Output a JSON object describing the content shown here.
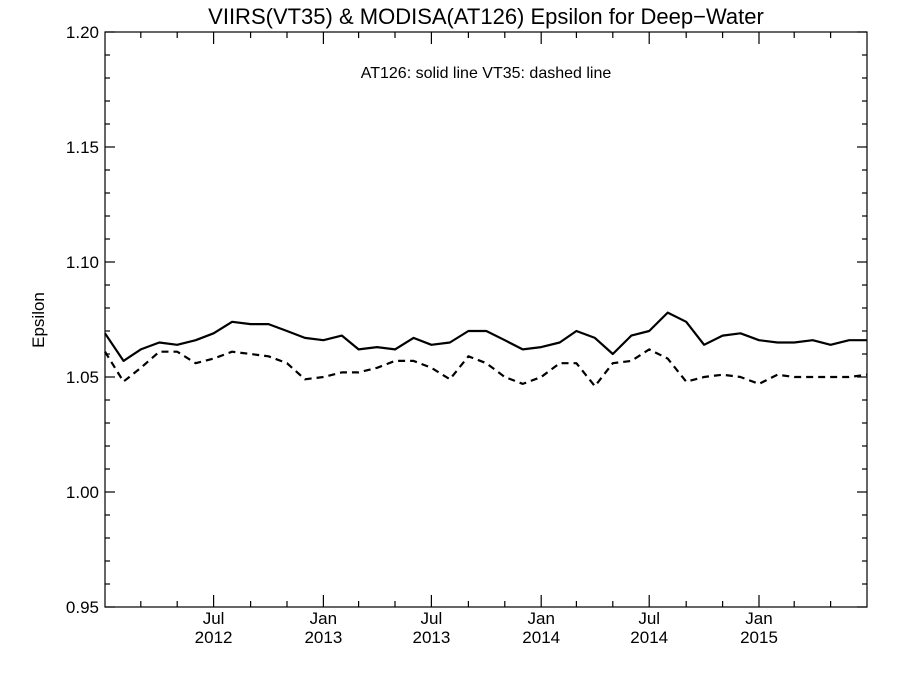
{
  "chart_data": {
    "type": "line",
    "title": "VIIRS(VT35) & MODISA(AT126)  Epsilon for Deep−Water",
    "annotation": "AT126: solid line   VT35: dashed line",
    "ylabel": "Epsilon",
    "xlabel": "",
    "ylim": [
      0.95,
      1.2
    ],
    "xlim": [
      "2012-01-01",
      "2015-07-01"
    ],
    "y_ticks": [
      "0.95",
      "1.00",
      "1.05",
      "1.10",
      "1.15",
      "1.20"
    ],
    "y_tick_values": [
      0.95,
      1.0,
      1.05,
      1.1,
      1.15,
      1.2
    ],
    "x_ticks": [
      {
        "date": "2012-07-01",
        "month": "Jul",
        "year": "2012"
      },
      {
        "date": "2013-01-01",
        "month": "Jan",
        "year": "2013"
      },
      {
        "date": "2013-07-01",
        "month": "Jul",
        "year": "2013"
      },
      {
        "date": "2014-01-01",
        "month": "Jan",
        "year": "2014"
      },
      {
        "date": "2014-07-01",
        "month": "Jul",
        "year": "2014"
      },
      {
        "date": "2015-01-01",
        "month": "Jan",
        "year": "2015"
      }
    ],
    "x_minor_ticks": [
      "2012-03-01",
      "2012-05-01",
      "2012-09-01",
      "2012-11-01",
      "2013-03-01",
      "2013-05-01",
      "2013-09-01",
      "2013-11-01",
      "2014-03-01",
      "2014-05-01",
      "2014-09-01",
      "2014-11-01",
      "2015-03-01",
      "2015-05-01"
    ],
    "x": [
      "2012-01-01",
      "2012-02-01",
      "2012-03-01",
      "2012-04-01",
      "2012-05-01",
      "2012-06-01",
      "2012-07-01",
      "2012-08-01",
      "2012-09-01",
      "2012-10-01",
      "2012-11-01",
      "2012-12-01",
      "2013-01-01",
      "2013-02-01",
      "2013-03-01",
      "2013-04-01",
      "2013-05-01",
      "2013-06-01",
      "2013-07-01",
      "2013-08-01",
      "2013-09-01",
      "2013-10-01",
      "2013-11-01",
      "2013-12-01",
      "2014-01-01",
      "2014-02-01",
      "2014-03-01",
      "2014-04-01",
      "2014-05-01",
      "2014-06-01",
      "2014-07-01",
      "2014-08-01",
      "2014-09-01",
      "2014-10-01",
      "2014-11-01",
      "2014-12-01",
      "2015-01-01",
      "2015-02-01",
      "2015-03-01",
      "2015-04-01",
      "2015-05-01",
      "2015-06-01",
      "2015-07-01"
    ],
    "series": [
      {
        "style": "solid",
        "values": [
          1.069,
          1.057,
          1.062,
          1.065,
          1.064,
          1.066,
          1.069,
          1.074,
          1.073,
          1.073,
          1.07,
          1.067,
          1.066,
          1.068,
          1.062,
          1.063,
          1.062,
          1.067,
          1.064,
          1.065,
          1.07,
          1.07,
          1.066,
          1.062,
          1.063,
          1.065,
          1.07,
          1.067,
          1.06,
          1.068,
          1.07,
          1.078,
          1.074,
          1.064,
          1.068,
          1.069,
          1.066,
          1.065,
          1.065,
          1.066,
          1.064,
          1.066,
          1.066
        ]
      },
      {
        "style": "dashed",
        "values": [
          1.061,
          1.048,
          1.054,
          1.061,
          1.061,
          1.056,
          1.058,
          1.061,
          1.06,
          1.059,
          1.056,
          1.049,
          1.05,
          1.052,
          1.052,
          1.054,
          1.057,
          1.057,
          1.054,
          1.049,
          1.059,
          1.056,
          1.05,
          1.047,
          1.05,
          1.056,
          1.056,
          1.046,
          1.056,
          1.057,
          1.062,
          1.058,
          1.048,
          1.05,
          1.051,
          1.05,
          1.047,
          1.051,
          1.05,
          1.05,
          1.05,
          1.05,
          1.051
        ]
      }
    ],
    "grid": false,
    "legend": "none"
  }
}
